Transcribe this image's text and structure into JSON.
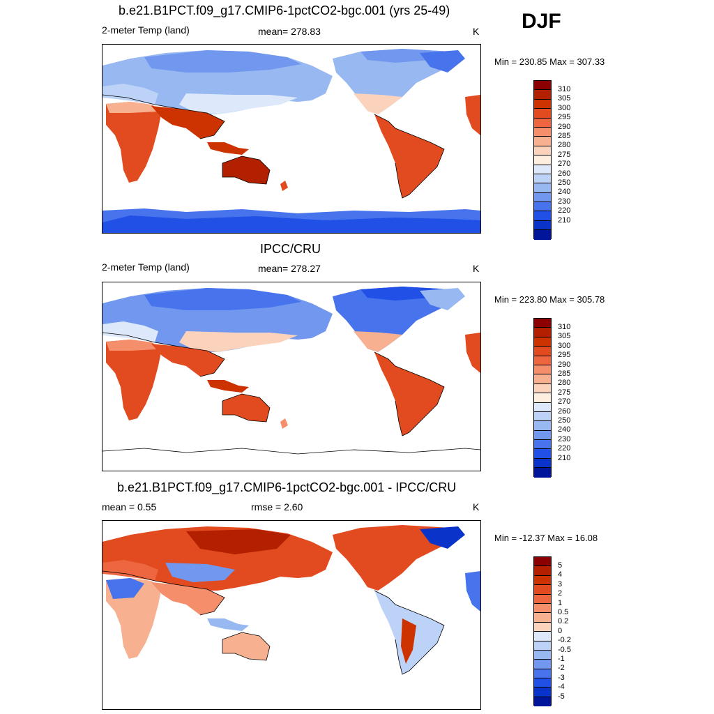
{
  "season": "DJF",
  "units": "K",
  "panels": [
    {
      "title": "b.e21.B1PCT.f09_g17.CMIP6-1pctCO2-bgc.001 (yrs 25-49)",
      "left_label": "2-meter Temp (land)",
      "center_label": "mean= 278.83",
      "units": "K",
      "minmax": "Min = 230.85 Max = 307.33",
      "colorbar_labels": [
        "310",
        "305",
        "300",
        "295",
        "290",
        "285",
        "280",
        "275",
        "270",
        "260",
        "250",
        "240",
        "230",
        "220",
        "210"
      ]
    },
    {
      "title": "IPCC/CRU",
      "left_label": "2-meter Temp (land)",
      "center_label": "mean= 278.27",
      "units": "K",
      "minmax": "Min = 223.80 Max = 305.78",
      "colorbar_labels": [
        "310",
        "305",
        "300",
        "295",
        "290",
        "285",
        "280",
        "275",
        "270",
        "260",
        "250",
        "240",
        "230",
        "220",
        "210"
      ]
    },
    {
      "title": "b.e21.B1PCT.f09_g17.CMIP6-1pctCO2-bgc.001 - IPCC/CRU",
      "left_label": "mean =   0.55",
      "center_label": "rmse =   2.60",
      "units": "K",
      "minmax": "Min = -12.37 Max =  16.08",
      "colorbar_labels": [
        "5",
        "4",
        "3",
        "2",
        "1",
        "0.5",
        "0.2",
        "0",
        "-0.2",
        "-0.5",
        "-1",
        "-2",
        "-3",
        "-4",
        "-5"
      ]
    }
  ],
  "colors": {
    "temp_scale": [
      "#8b0000",
      "#b22000",
      "#cc3300",
      "#e24a1f",
      "#ee6640",
      "#f58e6a",
      "#f7b090",
      "#fbd3bd",
      "#fdeee0",
      "#dde9fa",
      "#bcd3f7",
      "#98b8f2",
      "#7198ee",
      "#4774ec",
      "#2050e6",
      "#0a33c9",
      "#00159a"
    ],
    "diff_scale": [
      "#8b0000",
      "#b22000",
      "#cc3300",
      "#e24a1f",
      "#ee6640",
      "#f58e6a",
      "#f7b090",
      "#fbd3bd",
      "#dde9fa",
      "#bcd3f7",
      "#98b8f2",
      "#7198ee",
      "#4774ec",
      "#2050e6",
      "#0a33c9",
      "#00159a"
    ]
  }
}
